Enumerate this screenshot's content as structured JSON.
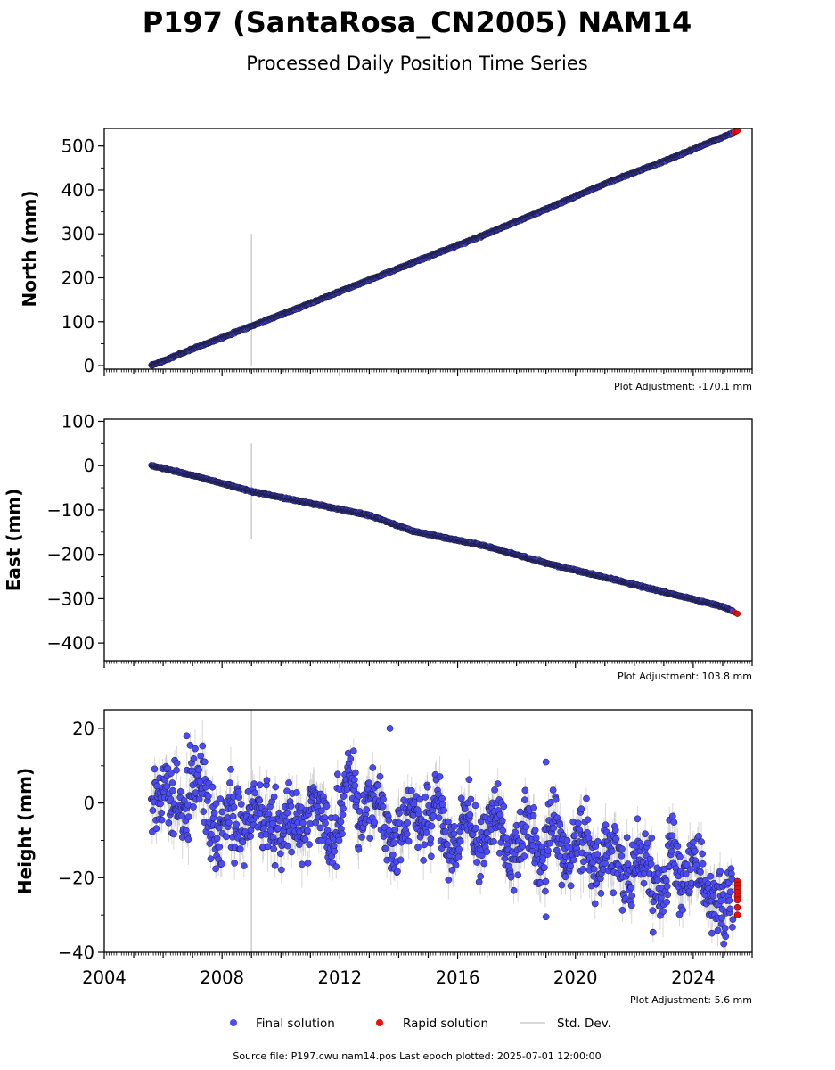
{
  "header": {
    "title": "P197 (SantaRosa_CN2005) NAM14",
    "subtitle": "Processed Daily Position Time Series"
  },
  "footer": {
    "source": "Source file: P197.cwu.nam14.pos  Last epoch plotted: 2025-07-01 12:00:00"
  },
  "legend": {
    "placement": "bottom-center",
    "items": [
      {
        "label": "Final solution",
        "color": "#4b4bf5",
        "kind": "dot"
      },
      {
        "label": "Rapid solution",
        "color": "#e81010",
        "kind": "dot"
      },
      {
        "label": "Std. Dev.",
        "color": "#cccccc",
        "kind": "line"
      }
    ]
  },
  "colors": {
    "final": "#4b4bf5",
    "rapid": "#e81010",
    "stddev": "#b8b8b8",
    "edge": "#1a1a3a"
  },
  "chart_data": [
    {
      "type": "scatter",
      "ylabel": "North (mm)",
      "adjustment": "Plot Adjustment: -170.1 mm",
      "xlim": [
        2004,
        2026
      ],
      "ylim": [
        -8,
        540
      ],
      "yticks": [
        0,
        100,
        200,
        300,
        400,
        500
      ],
      "ytick_labels": [
        "0",
        "100",
        "200",
        "300",
        "400",
        "500"
      ],
      "show_xtick_labels": false,
      "series": [
        {
          "kind": "final",
          "x": [
            2005.6,
            2007.0,
            2009.0,
            2011.0,
            2013.0,
            2015.0,
            2017.0,
            2019.0,
            2021.0,
            2023.0,
            2025.0,
            2025.35
          ],
          "y": [
            0,
            38,
            90,
            142,
            195,
            248,
            300,
            356,
            414,
            465,
            520,
            530
          ]
        },
        {
          "kind": "rapid",
          "x": [
            2025.38,
            2025.45,
            2025.5
          ],
          "y": [
            531,
            533,
            535
          ]
        }
      ],
      "stddev_outlier": {
        "x": 2009.0,
        "y": [
          0,
          300
        ]
      }
    },
    {
      "type": "scatter",
      "ylabel": "East (mm)",
      "adjustment": "Plot Adjustment: 103.8 mm",
      "xlim": [
        2004,
        2026
      ],
      "ylim": [
        -440,
        105
      ],
      "yticks": [
        100,
        0,
        -100,
        -200,
        -300,
        -400
      ],
      "ytick_labels": [
        "100",
        "0",
        "−100",
        "−200",
        "−300",
        "−400"
      ],
      "show_xtick_labels": false,
      "series": [
        {
          "kind": "final",
          "x": [
            2005.6,
            2007.0,
            2009.0,
            2011.0,
            2013.0,
            2014.5,
            2017.0,
            2019.0,
            2021.0,
            2023.0,
            2025.0,
            2025.35
          ],
          "y": [
            0,
            -22,
            -58,
            -85,
            -112,
            -148,
            -182,
            -220,
            -252,
            -285,
            -318,
            -328
          ]
        },
        {
          "kind": "rapid",
          "x": [
            2025.4,
            2025.5
          ],
          "y": [
            -331,
            -334
          ]
        }
      ],
      "stddev_outlier": {
        "x": 2009.0,
        "y": [
          -165,
          50
        ]
      }
    },
    {
      "type": "scatter",
      "ylabel": "Height (mm)",
      "adjustment": "Plot Adjustment: 5.6 mm",
      "xlim": [
        2004,
        2026
      ],
      "ylim": [
        -40,
        25
      ],
      "yticks": [
        20,
        0,
        -20,
        -40
      ],
      "ytick_labels": [
        "20",
        "0",
        "−20",
        "−40"
      ],
      "xticks": [
        2004,
        2008,
        2012,
        2016,
        2020,
        2024
      ],
      "xtick_labels": [
        "2004",
        "2008",
        "2012",
        "2016",
        "2020",
        "2024"
      ],
      "show_xtick_labels": true,
      "series": [
        {
          "kind": "final",
          "x": [
            2005.6,
            2007.0,
            2009.0,
            2011.0,
            2013.0,
            2015.0,
            2017.0,
            2019.0,
            2021.0,
            2023.0,
            2024.5,
            2025.35
          ],
          "y": [
            0,
            2,
            -8,
            -3,
            -2,
            -4,
            -8,
            -10,
            -14,
            -18,
            -22,
            -25
          ],
          "scatter_sd": 5.5
        },
        {
          "kind": "rapid",
          "x": [
            2025.5,
            2025.5,
            2025.5,
            2025.5,
            2025.5,
            2025.5,
            2025.5,
            2025.5
          ],
          "y": [
            -21,
            -22,
            -23,
            -24,
            -25,
            -26,
            -28,
            -30
          ]
        }
      ],
      "stddev_outlier": {
        "x": 2009.0,
        "y": [
          -40,
          25
        ]
      },
      "highlights": [
        {
          "x": 2013.7,
          "y": 20
        },
        {
          "x": 2006.8,
          "y": 18
        },
        {
          "x": 2019.0,
          "y": 11
        },
        {
          "x": 2019.0,
          "y": -30.5
        }
      ]
    }
  ]
}
